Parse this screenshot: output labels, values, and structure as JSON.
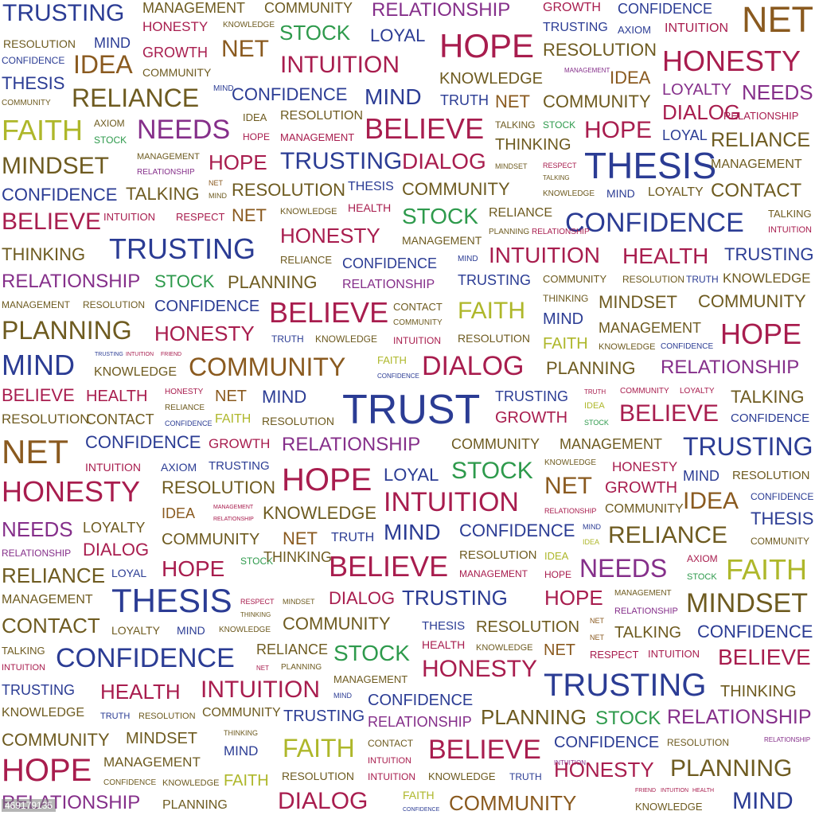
{
  "colors": {
    "b": "#2b3c94",
    "m": "#a81d4e",
    "p": "#852f8a",
    "g": "#6e5b20",
    "o": "#8a5a1f",
    "n": "#2e9a4c",
    "l": "#aeb72a"
  },
  "watermark": "469179135",
  "words": [
    [
      "TRUSTING",
      3,
      28,
      "b"
    ],
    [
      "MANAGEMENT",
      179,
      16,
      "g"
    ],
    [
      "COMMUNITY",
      332,
      16,
      "g"
    ],
    [
      "RELATIONSHIP",
      467,
      22,
      "p"
    ],
    [
      "GROWTH",
      682,
      16,
      "m"
    ],
    [
      "CONFIDENCE",
      776,
      17,
      "b"
    ],
    [
      "NET",
      932,
      42,
      "o"
    ],
    [
      "RESOLUTION",
      4,
      60,
      "g"
    ],
    [
      "MIND",
      118,
      60,
      "b"
    ],
    [
      "HONESTY",
      179,
      40,
      "m"
    ],
    [
      "KNOWLEDGE",
      280,
      36,
      "g"
    ],
    [
      "STOCK",
      351,
      50,
      "n"
    ],
    [
      "LOYAL",
      465,
      53,
      "b"
    ],
    [
      "HOPE",
      552,
      73,
      "m"
    ],
    [
      "TRUSTING",
      682,
      41,
      "b"
    ],
    [
      "AXIOM",
      776,
      42,
      "b"
    ],
    [
      "INTUITION",
      835,
      42,
      "m"
    ],
    [
      "CONFIDENCE",
      2,
      80,
      "b"
    ],
    [
      "IDEA",
      92,
      93,
      "o"
    ],
    [
      "GROWTH",
      179,
      72,
      "m"
    ],
    [
      "NET",
      278,
      73,
      "o"
    ],
    [
      "RESOLUTION",
      682,
      71,
      "g"
    ],
    [
      "HONESTY",
      832,
      90,
      "m"
    ],
    [
      "THESIS",
      2,
      113,
      "b"
    ],
    [
      "COMMUNITY",
      179,
      96,
      "g"
    ],
    [
      "INTUITION",
      352,
      93,
      "m"
    ],
    [
      "KNOWLEDGE",
      552,
      106,
      "g"
    ],
    [
      "MANAGEMENT",
      709,
      92,
      "p"
    ],
    [
      "IDEA",
      766,
      106,
      "o"
    ],
    [
      "RELIANCE",
      90,
      135,
      "g"
    ],
    [
      "MIND",
      268,
      116,
      "b"
    ],
    [
      "CONFIDENCE",
      291,
      127,
      "b"
    ],
    [
      "MIND",
      458,
      132,
      "b"
    ],
    [
      "TRUTH",
      553,
      132,
      "b"
    ],
    [
      "NET",
      622,
      136,
      "o"
    ],
    [
      "COMMUNITY",
      682,
      136,
      "g"
    ],
    [
      "LOYALTY",
      832,
      120,
      "p"
    ],
    [
      "NEEDS",
      932,
      127,
      "p"
    ],
    [
      "COMMUNITY",
      2,
      134,
      "g"
    ],
    [
      "DIALOG",
      832,
      150,
      "m"
    ],
    [
      "FAITH",
      2,
      177,
      "l"
    ],
    [
      "AXIOM",
      118,
      159,
      "g"
    ],
    [
      "NEEDS",
      172,
      175,
      "p"
    ],
    [
      "IDEA",
      305,
      152,
      "g"
    ],
    [
      "RESOLUTION",
      352,
      152,
      "g"
    ],
    [
      "BELIEVE",
      458,
      175,
      "m"
    ],
    [
      "TALKING",
      622,
      161,
      "g"
    ],
    [
      "STOCK",
      682,
      161,
      "n"
    ],
    [
      "HOPE",
      734,
      175,
      "m"
    ],
    [
      "RELATIONSHIP",
      909,
      150,
      "m"
    ],
    [
      "STOCK",
      118,
      180,
      "n"
    ],
    [
      "HOPE",
      305,
      176,
      "m"
    ],
    [
      "MANAGEMENT",
      352,
      177,
      "m"
    ],
    [
      "LOYAL",
      832,
      176,
      "b"
    ],
    [
      "RELIANCE",
      893,
      186,
      "g"
    ],
    [
      "MINDSET",
      2,
      220,
      "g"
    ],
    [
      "MANAGEMENT",
      172,
      201,
      "g"
    ],
    [
      "HOPE",
      262,
      213,
      "m"
    ],
    [
      "TRUSTING",
      352,
      214,
      "b"
    ],
    [
      "DIALOG",
      505,
      213,
      "m"
    ],
    [
      "THINKING",
      622,
      189,
      "g"
    ],
    [
      "MINDSET",
      622,
      213,
      "g"
    ],
    [
      "RESPECT",
      682,
      212,
      "m"
    ],
    [
      "THESIS",
      734,
      225,
      "b"
    ],
    [
      "MANAGEMENT",
      893,
      213,
      "g"
    ],
    [
      "RELATIONSHIP",
      172,
      221,
      "p"
    ],
    [
      "TALKING",
      682,
      227,
      "g"
    ],
    [
      "CONFIDENCE",
      2,
      253,
      "b"
    ],
    [
      "TALKING",
      158,
      252,
      "g"
    ],
    [
      "NET",
      262,
      234,
      "o"
    ],
    [
      "RESOLUTION",
      291,
      247,
      "g"
    ],
    [
      "THESIS",
      437,
      241,
      "b"
    ],
    [
      "COMMUNITY",
      505,
      246,
      "g"
    ],
    [
      "KNOWLEDGE",
      682,
      248,
      "g"
    ],
    [
      "MIND",
      762,
      248,
      "b"
    ],
    [
      "LOYALTY",
      814,
      248,
      "g"
    ],
    [
      "CONTACT",
      893,
      249,
      "g"
    ],
    [
      "MIND",
      262,
      250,
      "g"
    ],
    [
      "BELIEVE",
      2,
      290,
      "m"
    ],
    [
      "INTUITION",
      130,
      277,
      "m"
    ],
    [
      "RESPECT",
      221,
      277,
      "m"
    ],
    [
      "NET",
      291,
      279,
      "o"
    ],
    [
      "KNOWLEDGE",
      352,
      270,
      "g"
    ],
    [
      "HEALTH",
      437,
      266,
      "m"
    ],
    [
      "STOCK",
      505,
      282,
      "n"
    ],
    [
      "RELIANCE",
      614,
      274,
      "g"
    ],
    [
      "CONFIDENCE",
      710,
      292,
      "b"
    ],
    [
      "TALKING",
      965,
      273,
      "g"
    ],
    [
      "TRUSTING",
      137,
      326,
      "b"
    ],
    [
      "HONESTY",
      352,
      305,
      "m"
    ],
    [
      "MANAGEMENT",
      505,
      307,
      "g"
    ],
    [
      "PLANNING",
      614,
      296,
      "g"
    ],
    [
      "RELATIONSHIP",
      668,
      296,
      "m"
    ],
    [
      "INTUITION",
      965,
      294,
      "m"
    ],
    [
      "THINKING",
      2,
      328,
      "g"
    ],
    [
      "RELIANCE",
      352,
      331,
      "g"
    ],
    [
      "CONFIDENCE",
      430,
      337,
      "b"
    ],
    [
      "MIND",
      575,
      330,
      "b"
    ],
    [
      "INTUITION",
      614,
      331,
      "m"
    ],
    [
      "HEALTH",
      782,
      332,
      "m"
    ],
    [
      "TRUSTING",
      910,
      328,
      "b"
    ],
    [
      "RELATIONSHIP",
      2,
      363,
      "p"
    ],
    [
      "STOCK",
      194,
      362,
      "n"
    ],
    [
      "PLANNING",
      286,
      363,
      "g"
    ],
    [
      "RELATIONSHIP",
      430,
      364,
      "p"
    ],
    [
      "TRUSTING",
      575,
      358,
      "b"
    ],
    [
      "COMMUNITY",
      682,
      355,
      "g"
    ],
    [
      "RESOLUTION",
      782,
      355,
      "g"
    ],
    [
      "TRUTH",
      862,
      355,
      "b"
    ],
    [
      "KNOWLEDGE",
      908,
      356,
      "g"
    ],
    [
      "MANAGEMENT",
      2,
      387,
      "g"
    ],
    [
      "RESOLUTION",
      104,
      387,
      "g"
    ],
    [
      "CONFIDENCE",
      194,
      392,
      "b"
    ],
    [
      "BELIEVE",
      338,
      406,
      "m"
    ],
    [
      "CONTACT",
      494,
      390,
      "g"
    ],
    [
      "FAITH",
      575,
      402,
      "l"
    ],
    [
      "THINKING",
      682,
      379,
      "g"
    ],
    [
      "MINDSET",
      752,
      388,
      "g"
    ],
    [
      "COMMUNITY",
      877,
      387,
      "g"
    ],
    [
      "COMMUNITY",
      494,
      410,
      "g"
    ],
    [
      "MIND",
      682,
      408,
      "b"
    ],
    [
      "MANAGEMENT",
      752,
      418,
      "g"
    ],
    [
      "PLANNING",
      2,
      427,
      "g"
    ],
    [
      "HONESTY",
      194,
      428,
      "m"
    ],
    [
      "TRUTH",
      341,
      430,
      "b"
    ],
    [
      "KNOWLEDGE",
      396,
      430,
      "g"
    ],
    [
      "INTUITION",
      494,
      432,
      "m"
    ],
    [
      "RESOLUTION",
      575,
      430,
      "g"
    ],
    [
      "FAITH",
      682,
      439,
      "l"
    ],
    [
      "KNOWLEDGE",
      752,
      440,
      "g"
    ],
    [
      "CONFIDENCE",
      830,
      440,
      "b"
    ],
    [
      "HOPE",
      905,
      433,
      "m"
    ],
    [
      "TRUSTING",
      119,
      448,
      "b"
    ],
    [
      "INTUITION",
      158,
      448,
      "m"
    ],
    [
      "FRIEND",
      202,
      448,
      "m"
    ],
    [
      "MIND",
      2,
      472,
      "b"
    ],
    [
      "KNOWLEDGE",
      118,
      474,
      "g"
    ],
    [
      "COMMUNITY",
      237,
      473,
      "o"
    ],
    [
      "FAITH",
      474,
      457,
      "l"
    ],
    [
      "CONFIDENCE",
      474,
      476,
      "b"
    ],
    [
      "DIALOG",
      530,
      472,
      "m"
    ],
    [
      "PLANNING",
      686,
      471,
      "g"
    ],
    [
      "RELATIONSHIP",
      830,
      471,
      "p"
    ],
    [
      "BELIEVE",
      2,
      505,
      "m"
    ],
    [
      "HEALTH",
      108,
      505,
      "m"
    ],
    [
      "HONESTY",
      207,
      497,
      "m"
    ],
    [
      "NET",
      270,
      505,
      "o"
    ],
    [
      "MIND",
      329,
      507,
      "b"
    ],
    [
      "TRUST",
      430,
      534,
      "b"
    ],
    [
      "TRUSTING",
      622,
      504,
      "b"
    ],
    [
      "TRUTH",
      734,
      496,
      "m"
    ],
    [
      "COMMUNITY",
      779,
      496,
      "m"
    ],
    [
      "LOYALTY",
      854,
      496,
      "m"
    ],
    [
      "TALKING",
      918,
      507,
      "g"
    ],
    [
      "RELIANCE",
      207,
      517,
      "g"
    ],
    [
      "IDEA",
      734,
      514,
      "l"
    ],
    [
      "CONFIDENCE",
      207,
      536,
      "b"
    ],
    [
      "RESOLUTION",
      2,
      533,
      "g"
    ],
    [
      "CONTACT",
      108,
      533,
      "g"
    ],
    [
      "FAITH",
      270,
      533,
      "l"
    ],
    [
      "RESOLUTION",
      329,
      534,
      "g"
    ],
    [
      "GROWTH",
      622,
      532,
      "m"
    ],
    [
      "STOCK",
      734,
      535,
      "n"
    ],
    [
      "BELIEVE",
      778,
      531,
      "m"
    ],
    [
      "CONFIDENCE",
      918,
      532,
      "b"
    ],
    [
      "NET",
      2,
      583,
      "o"
    ],
    [
      "CONFIDENCE",
      107,
      564,
      "b"
    ],
    [
      "GROWTH",
      262,
      564,
      "m"
    ],
    [
      "RELATIONSHIP",
      354,
      568,
      "p"
    ],
    [
      "COMMUNITY",
      567,
      564,
      "g"
    ],
    [
      "MANAGEMENT",
      703,
      564,
      "g"
    ],
    [
      "TRUSTING",
      858,
      573,
      "b"
    ],
    [
      "INTUITION",
      107,
      592,
      "m"
    ],
    [
      "AXIOM",
      202,
      592,
      "b"
    ],
    [
      "TRUSTING",
      262,
      591,
      "b"
    ],
    [
      "HOPE",
      354,
      617,
      "m"
    ],
    [
      "LOYAL",
      482,
      605,
      "b"
    ],
    [
      "STOCK",
      567,
      603,
      "n"
    ],
    [
      "KNOWLEDGE",
      684,
      586,
      "g"
    ],
    [
      "HONESTY",
      769,
      593,
      "m"
    ],
    [
      "MIND",
      858,
      604,
      "b"
    ],
    [
      "RESOLUTION",
      920,
      604,
      "g"
    ],
    [
      "HONESTY",
      2,
      631,
      "m"
    ],
    [
      "RESOLUTION",
      203,
      621,
      "g"
    ],
    [
      "NET",
      684,
      622,
      "o"
    ],
    [
      "GROWTH",
      760,
      620,
      "m"
    ],
    [
      "INTUITION",
      482,
      643,
      "m"
    ],
    [
      "IDEA",
      858,
      641,
      "o"
    ],
    [
      "CONFIDENCE",
      943,
      628,
      "b"
    ],
    [
      "IDEA",
      203,
      651,
      "o"
    ],
    [
      "MANAGEMENT",
      268,
      640,
      "m"
    ],
    [
      "KNOWLEDGE",
      330,
      653,
      "g"
    ],
    [
      "RELATIONSHIP",
      268,
      655,
      "m"
    ],
    [
      "RELATIONSHIP",
      684,
      646,
      "m"
    ],
    [
      "COMMUNITY",
      760,
      646,
      "g"
    ],
    [
      "THESIS",
      943,
      660,
      "b"
    ],
    [
      "NEEDS",
      2,
      674,
      "p"
    ],
    [
      "LOYALTY",
      104,
      669,
      "g"
    ],
    [
      "COMMUNITY",
      203,
      685,
      "g"
    ],
    [
      "NET",
      355,
      685,
      "o"
    ],
    [
      "TRUTH",
      416,
      682,
      "b"
    ],
    [
      "MIND",
      482,
      679,
      "b"
    ],
    [
      "CONFIDENCE",
      577,
      675,
      "b"
    ],
    [
      "MIND",
      732,
      666,
      "b"
    ],
    [
      "RELIANCE",
      764,
      684,
      "g"
    ],
    [
      "COMMUNITY",
      943,
      685,
      "g"
    ],
    [
      "RELATIONSHIP",
      2,
      699,
      "p"
    ],
    [
      "DIALOG",
      104,
      699,
      "m"
    ],
    [
      "IDEA",
      732,
      685,
      "l"
    ],
    [
      "AXIOM",
      863,
      706,
      "m"
    ],
    [
      "STOCK",
      302,
      709,
      "n"
    ],
    [
      "THINKING",
      331,
      706,
      "g"
    ],
    [
      "RESOLUTION",
      577,
      703,
      "g"
    ],
    [
      "IDEA",
      684,
      703,
      "l"
    ],
    [
      "NEEDS",
      728,
      726,
      "p"
    ],
    [
      "FAITH",
      912,
      729,
      "l"
    ],
    [
      "RELIANCE",
      2,
      732,
      "g"
    ],
    [
      "LOYAL",
      140,
      725,
      "b"
    ],
    [
      "HOPE",
      203,
      725,
      "m"
    ],
    [
      "BELIEVE",
      413,
      725,
      "m"
    ],
    [
      "MANAGEMENT",
      577,
      725,
      "m"
    ],
    [
      "HOPE",
      684,
      726,
      "m"
    ],
    [
      "STOCK",
      863,
      729,
      "n"
    ],
    [
      "MANAGEMENT",
      2,
      760,
      "g"
    ],
    [
      "THESIS",
      140,
      770,
      "b"
    ],
    [
      "RESPECT",
      302,
      760,
      "m"
    ],
    [
      "MINDSET",
      355,
      760,
      "g"
    ],
    [
      "DIALOG",
      413,
      760,
      "m"
    ],
    [
      "TRUSTING",
      505,
      760,
      "b"
    ],
    [
      "HOPE",
      684,
      760,
      "m"
    ],
    [
      "MANAGEMENT",
      772,
      750,
      "g"
    ],
    [
      "RELATIONSHIP",
      772,
      772,
      "p"
    ],
    [
      "MINDSET",
      862,
      770,
      "g"
    ],
    [
      "THINKING",
      302,
      776,
      "g"
    ],
    [
      "CONTACT",
      2,
      795,
      "g"
    ],
    [
      "LOYALTY",
      140,
      797,
      "g"
    ],
    [
      "MIND",
      222,
      797,
      "b"
    ],
    [
      "KNOWLEDGE",
      275,
      796,
      "g"
    ],
    [
      "COMMUNITY",
      355,
      792,
      "g"
    ],
    [
      "THESIS",
      530,
      792,
      "b"
    ],
    [
      "RESOLUTION",
      598,
      795,
      "g"
    ],
    [
      "NET",
      741,
      784,
      "o"
    ],
    [
      "TALKING",
      772,
      802,
      "g"
    ],
    [
      "CONFIDENCE",
      876,
      802,
      "b"
    ],
    [
      "NET",
      741,
      805,
      "o"
    ],
    [
      "TALKING",
      2,
      822,
      "g"
    ],
    [
      "CONFIDENCE",
      70,
      839,
      "b"
    ],
    [
      "RELIANCE",
      322,
      822,
      "g"
    ],
    [
      "STOCK",
      419,
      831,
      "n"
    ],
    [
      "HEALTH",
      530,
      815,
      "m"
    ],
    [
      "KNOWLEDGE",
      598,
      818,
      "g"
    ],
    [
      "NET",
      683,
      824,
      "o"
    ],
    [
      "RESPECT",
      741,
      827,
      "m"
    ],
    [
      "INTUITION",
      814,
      826,
      "m"
    ],
    [
      "BELIEVE",
      902,
      838,
      "m"
    ],
    [
      "INTUITION",
      2,
      843,
      "m"
    ],
    [
      "NET",
      322,
      843,
      "m"
    ],
    [
      "PLANNING",
      353,
      843,
      "g"
    ],
    [
      "HONESTY",
      530,
      852,
      "m"
    ],
    [
      "MANAGEMENT",
      419,
      858,
      "g"
    ],
    [
      "TRUSTING",
      683,
      875,
      "b"
    ],
    [
      "TRUSTING",
      2,
      873,
      "b"
    ],
    [
      "HEALTH",
      126,
      878,
      "m"
    ],
    [
      "INTUITION",
      252,
      878,
      "m"
    ],
    [
      "MIND",
      419,
      878,
      "b"
    ],
    [
      "CONFIDENCE",
      462,
      887,
      "b"
    ],
    [
      "THINKING",
      905,
      876,
      "g"
    ],
    [
      "KNOWLEDGE",
      2,
      902,
      "g"
    ],
    [
      "TRUTH",
      126,
      904,
      "b"
    ],
    [
      "RESOLUTION",
      174,
      904,
      "g"
    ],
    [
      "COMMUNITY",
      254,
      902,
      "g"
    ],
    [
      "TRUSTING",
      356,
      907,
      "b"
    ],
    [
      "RELATIONSHIP",
      462,
      913,
      "p"
    ],
    [
      "PLANNING",
      604,
      910,
      "g"
    ],
    [
      "STOCK",
      748,
      912,
      "n"
    ],
    [
      "RELATIONSHIP",
      838,
      911,
      "p"
    ],
    [
      "COMMUNITY",
      2,
      938,
      "g"
    ],
    [
      "MINDSET",
      158,
      935,
      "g"
    ],
    [
      "THINKING",
      281,
      925,
      "g"
    ],
    [
      "MIND",
      281,
      950,
      "b"
    ],
    [
      "FAITH",
      355,
      952,
      "l"
    ],
    [
      "CONTACT",
      462,
      938,
      "g"
    ],
    [
      "BELIEVE",
      538,
      954,
      "m"
    ],
    [
      "CONFIDENCE",
      696,
      940,
      "b"
    ],
    [
      "RESOLUTION",
      838,
      937,
      "g"
    ],
    [
      "RELATIONSHIP",
      960,
      937,
      "p"
    ],
    [
      "HOPE",
      2,
      982,
      "m"
    ],
    [
      "MANAGEMENT",
      130,
      964,
      "g"
    ],
    [
      "INTUITION",
      462,
      960,
      "m"
    ],
    [
      "INTUITION",
      696,
      962,
      "p"
    ],
    [
      "HONESTY",
      696,
      976,
      "m"
    ],
    [
      "PLANNING",
      842,
      977,
      "g"
    ],
    [
      "CONFIDENCE",
      130,
      988,
      "g"
    ],
    [
      "KNOWLEDGE",
      204,
      988,
      "g"
    ],
    [
      "FAITH",
      281,
      988,
      "l"
    ],
    [
      "RESOLUTION",
      354,
      980,
      "g"
    ],
    [
      "INTUITION",
      462,
      980,
      "m"
    ],
    [
      "KNOWLEDGE",
      538,
      980,
      "g"
    ],
    [
      "TRUTH",
      640,
      980,
      "b"
    ],
    [
      "FRIEND",
      798,
      996,
      "m"
    ],
    [
      "INTUITION",
      830,
      996,
      "m"
    ],
    [
      "HEALTH",
      870,
      996,
      "m"
    ],
    [
      "RELATIONSHIP",
      2,
      1018,
      "p"
    ],
    [
      "PLANNING",
      204,
      1018,
      "g"
    ],
    [
      "DIALOG",
      349,
      1018,
      "m"
    ],
    [
      "FAITH",
      506,
      1004,
      "l"
    ],
    [
      "CONFIDENCE",
      506,
      1020,
      "b"
    ],
    [
      "COMMUNITY",
      564,
      1018,
      "o"
    ],
    [
      "KNOWLEDGE",
      798,
      1018,
      "g"
    ],
    [
      "MIND",
      920,
      1018,
      "b"
    ]
  ]
}
